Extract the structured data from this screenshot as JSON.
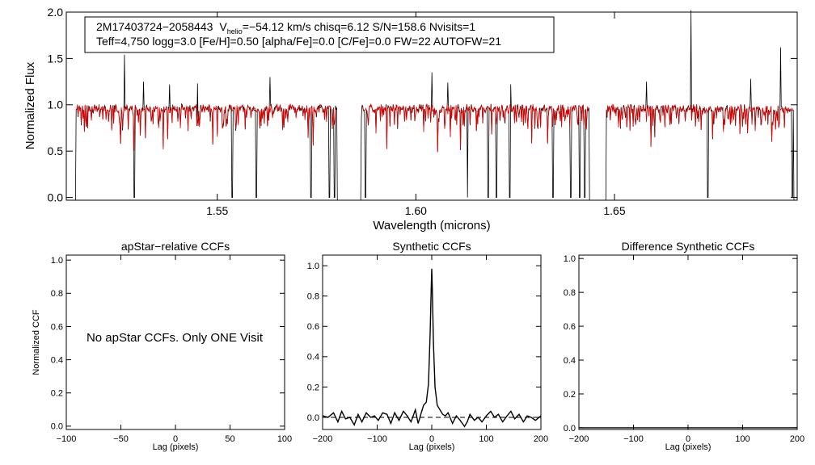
{
  "spectrum": {
    "info_line1_id": "2M17403724−2058443",
    "info_line1_v": "V",
    "info_line1_sub": "helio",
    "info_line1_rest": "=−54.12 km/s  chisq=6.12  S/N=158.6  Nvisits=1",
    "info_line2": "Teff=4,750 logg=3.0 [Fe/H]=0.50 [alpha/Fe]=0.0 [C/Fe]=0.0 FW=22 AUTOFW=21"
  },
  "panels": {
    "apstar_message": "No apStar CCFs.  Only ONE Visit"
  },
  "colors": {
    "observed": "#000000",
    "model": "#e00000",
    "axis": "#000000"
  },
  "chart_data": [
    {
      "type": "line",
      "title": "",
      "xlabel": "Wavelength (microns)",
      "ylabel": "Normalized Flux",
      "xlim": [
        1.512,
        1.696
      ],
      "ylim": [
        -0.03,
        2.0
      ],
      "xticks": [
        1.55,
        1.6,
        1.65
      ],
      "xtick_labels": [
        "1.55",
        "1.60",
        "1.65"
      ],
      "yticks": [
        0.0,
        0.5,
        1.0,
        1.5,
        2.0
      ],
      "ytick_labels": [
        "0.0",
        "0.5",
        "1.0",
        "1.5",
        "2.0"
      ],
      "chips": [
        [
          1.514,
          1.5805
        ],
        [
          1.5858,
          1.644
        ],
        [
          1.6475,
          1.6955
        ]
      ],
      "continuum": 0.96,
      "emission_spikes": [
        [
          1.5266,
          1.54
        ],
        [
          1.5315,
          1.25
        ],
        [
          1.538,
          1.22
        ],
        [
          1.545,
          1.23
        ],
        [
          1.5633,
          1.3
        ],
        [
          1.604,
          1.35
        ],
        [
          1.608,
          1.24
        ],
        [
          1.6238,
          1.22
        ],
        [
          1.658,
          1.25
        ],
        [
          1.6692,
          2.02
        ],
        [
          1.6843,
          1.28
        ],
        [
          1.6918,
          1.62
        ]
      ],
      "deep_absorptions": [
        [
          1.5291,
          0.0
        ],
        [
          1.5538,
          0.0
        ],
        [
          1.5599,
          0.0
        ],
        [
          1.5736,
          0.0
        ],
        [
          1.5782,
          0.0
        ],
        [
          1.5795,
          0.0
        ],
        [
          1.5873,
          0.0
        ],
        [
          1.613,
          0.0
        ],
        [
          1.6182,
          0.0
        ],
        [
          1.6203,
          0.0
        ],
        [
          1.6237,
          0.0
        ],
        [
          1.6345,
          0.0
        ],
        [
          1.639,
          0.0
        ],
        [
          1.6412,
          0.0
        ],
        [
          1.6425,
          0.0
        ],
        [
          1.6735,
          0.0
        ],
        [
          1.6948,
          0.0
        ]
      ],
      "series": [
        {
          "color": "#000000"
        },
        {
          "color": "#e00000"
        }
      ]
    },
    {
      "type": "line",
      "title": "apStar−relative CCFs",
      "xlabel": "Lag (pixels)",
      "ylabel": "Normalized CCF",
      "xlim": [
        -100,
        100
      ],
      "ylim": [
        -0.02,
        1.03
      ],
      "xticks": [
        -100,
        -50,
        0,
        50,
        100
      ],
      "xtick_labels": [
        "−100",
        "−50",
        "0",
        "50",
        "100"
      ],
      "yticks": [
        0.0,
        0.2,
        0.4,
        0.6,
        0.8,
        1.0
      ],
      "ytick_labels": [
        "0.0",
        "0.2",
        "0.4",
        "0.6",
        "0.8",
        "1.0"
      ],
      "series": []
    },
    {
      "type": "line",
      "title": "Synthetic CCFs",
      "xlabel": "Lag (pixels)",
      "ylabel": "",
      "xlim": [
        -200,
        200
      ],
      "ylim": [
        -0.08,
        1.07
      ],
      "xticks": [
        -200,
        -100,
        0,
        100,
        200
      ],
      "xtick_labels": [
        "−200",
        "−100",
        "0",
        "100",
        "200"
      ],
      "yticks": [
        0.0,
        0.2,
        0.4,
        0.6,
        0.8,
        1.0
      ],
      "ytick_labels": [
        "0.0",
        "0.2",
        "0.4",
        "0.6",
        "0.8",
        "1.0"
      ],
      "reference_line": 0.0,
      "series": [
        {
          "color": "#000000",
          "x": [
            -200,
            -190,
            -180,
            -172,
            -165,
            -158,
            -150,
            -142,
            -135,
            -128,
            -120,
            -112,
            -105,
            -98,
            -90,
            -82,
            -75,
            -68,
            -60,
            -52,
            -45,
            -38,
            -30,
            -25,
            -20,
            -15,
            -10,
            -6,
            -3,
            -1,
            0,
            1,
            3,
            6,
            10,
            15,
            20,
            25,
            30,
            38,
            45,
            52,
            60,
            65,
            70,
            78,
            85,
            92,
            100,
            108,
            115,
            122,
            130,
            138,
            145,
            152,
            160,
            168,
            175,
            182,
            190,
            200
          ],
          "y": [
            0.01,
            0.0,
            0.03,
            -0.03,
            0.04,
            -0.01,
            0.0,
            -0.05,
            0.02,
            -0.03,
            0.03,
            0.0,
            0.01,
            -0.02,
            0.03,
            0.02,
            -0.04,
            0.03,
            -0.02,
            0.04,
            0.01,
            -0.03,
            0.05,
            -0.04,
            0.02,
            0.08,
            0.1,
            0.22,
            0.55,
            0.85,
            0.98,
            0.85,
            0.5,
            0.2,
            0.08,
            0.05,
            0.02,
            0.01,
            0.03,
            -0.04,
            0.01,
            -0.02,
            -0.06,
            -0.03,
            0.02,
            -0.02,
            0.0,
            -0.03,
            0.01,
            0.04,
            0.0,
            0.02,
            -0.03,
            0.01,
            0.04,
            -0.01,
            0.02,
            -0.03,
            0.01,
            0.0,
            -0.02,
            0.01
          ]
        }
      ]
    },
    {
      "type": "line",
      "title": "Difference Synthetic CCFs",
      "xlabel": "Lag (pixels)",
      "ylabel": "",
      "xlim": [
        -200,
        200
      ],
      "ylim": [
        -0.01,
        1.02
      ],
      "xticks": [
        -200,
        -100,
        0,
        100,
        200
      ],
      "xtick_labels": [
        "−200",
        "−100",
        "0",
        "100",
        "200"
      ],
      "yticks": [
        0.0,
        0.2,
        0.4,
        0.6,
        0.8,
        1.0
      ],
      "ytick_labels": [
        "0.0",
        "0.2",
        "0.4",
        "0.6",
        "0.8",
        "1.0"
      ],
      "series": [
        {
          "color": "#000000",
          "x": [
            -200,
            200
          ],
          "y": [
            0.0,
            0.0
          ]
        }
      ]
    }
  ]
}
